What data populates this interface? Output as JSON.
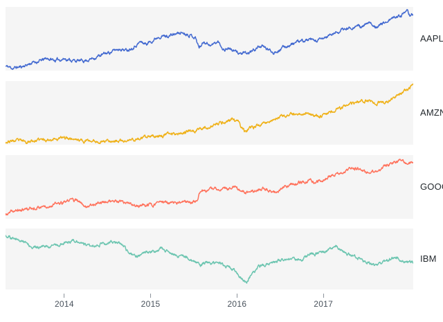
{
  "chart_data": {
    "type": "line",
    "title": "",
    "layout": "faceted small multiples, one panel per stock, shared x axis",
    "x_domain": [
      2013.32,
      2018.04
    ],
    "x_ticks": [
      {
        "year": 2014,
        "label": "2014"
      },
      {
        "year": 2015,
        "label": "2015"
      },
      {
        "year": 2016,
        "label": "2016"
      },
      {
        "year": 2017,
        "label": "2017"
      }
    ],
    "grid": false,
    "panel_background": "#f5f5f5",
    "samples": 1190,
    "stroke_width": 1.5,
    "noise": {
      "persistence": 0.8,
      "amplitude": 3.4
    },
    "series": [
      {
        "name": "AAPL",
        "color": "#4269d0",
        "seed": 11,
        "points": [
          [
            2013.32,
            7
          ],
          [
            2013.4,
            4
          ],
          [
            2013.5,
            6
          ],
          [
            2013.62,
            12
          ],
          [
            2013.74,
            16
          ],
          [
            2013.8,
            19
          ],
          [
            2013.9,
            16
          ],
          [
            2014.0,
            19
          ],
          [
            2014.1,
            16
          ],
          [
            2014.2,
            15
          ],
          [
            2014.3,
            18
          ],
          [
            2014.42,
            24
          ],
          [
            2014.55,
            30
          ],
          [
            2014.65,
            35
          ],
          [
            2014.72,
            32
          ],
          [
            2014.8,
            38
          ],
          [
            2014.88,
            45
          ],
          [
            2014.95,
            42
          ],
          [
            2015.05,
            50
          ],
          [
            2015.1,
            55
          ],
          [
            2015.18,
            54
          ],
          [
            2015.25,
            56
          ],
          [
            2015.36,
            60
          ],
          [
            2015.45,
            57
          ],
          [
            2015.52,
            52
          ],
          [
            2015.56,
            36
          ],
          [
            2015.62,
            46
          ],
          [
            2015.7,
            40
          ],
          [
            2015.78,
            45
          ],
          [
            2015.85,
            33
          ],
          [
            2015.9,
            36
          ],
          [
            2015.97,
            30
          ],
          [
            2016.05,
            27
          ],
          [
            2016.12,
            26
          ],
          [
            2016.2,
            33
          ],
          [
            2016.27,
            39
          ],
          [
            2016.33,
            35
          ],
          [
            2016.42,
            29
          ],
          [
            2016.5,
            34
          ],
          [
            2016.6,
            40
          ],
          [
            2016.68,
            44
          ],
          [
            2016.75,
            46
          ],
          [
            2016.82,
            48
          ],
          [
            2016.9,
            46
          ],
          [
            2016.97,
            48
          ],
          [
            2017.05,
            54
          ],
          [
            2017.12,
            58
          ],
          [
            2017.2,
            63
          ],
          [
            2017.3,
            67
          ],
          [
            2017.38,
            71
          ],
          [
            2017.45,
            68
          ],
          [
            2017.52,
            74
          ],
          [
            2017.6,
            70
          ],
          [
            2017.68,
            73
          ],
          [
            2017.75,
            79
          ],
          [
            2017.82,
            83
          ],
          [
            2017.9,
            88
          ],
          [
            2017.97,
            91
          ],
          [
            2018.0,
            87
          ],
          [
            2018.04,
            90
          ]
        ]
      },
      {
        "name": "AMZN",
        "color": "#efb118",
        "seed": 23,
        "points": [
          [
            2013.32,
            5
          ],
          [
            2013.45,
            6
          ],
          [
            2013.55,
            5
          ],
          [
            2013.7,
            7
          ],
          [
            2013.85,
            9
          ],
          [
            2013.95,
            10
          ],
          [
            2014.05,
            11
          ],
          [
            2014.15,
            8
          ],
          [
            2014.25,
            6
          ],
          [
            2014.4,
            5
          ],
          [
            2014.5,
            7
          ],
          [
            2014.6,
            6
          ],
          [
            2014.7,
            5
          ],
          [
            2014.8,
            8
          ],
          [
            2014.9,
            10
          ],
          [
            2015.0,
            12
          ],
          [
            2015.08,
            14
          ],
          [
            2015.18,
            16
          ],
          [
            2015.28,
            18
          ],
          [
            2015.4,
            20
          ],
          [
            2015.5,
            22
          ],
          [
            2015.58,
            26
          ],
          [
            2015.66,
            27
          ],
          [
            2015.75,
            31
          ],
          [
            2015.85,
            36
          ],
          [
            2015.95,
            40
          ],
          [
            2016.02,
            34
          ],
          [
            2016.1,
            19
          ],
          [
            2016.17,
            26
          ],
          [
            2016.25,
            31
          ],
          [
            2016.35,
            36
          ],
          [
            2016.45,
            41
          ],
          [
            2016.55,
            44
          ],
          [
            2016.65,
            47
          ],
          [
            2016.75,
            49
          ],
          [
            2016.82,
            51
          ],
          [
            2016.9,
            44
          ],
          [
            2016.97,
            46
          ],
          [
            2017.05,
            50
          ],
          [
            2017.15,
            55
          ],
          [
            2017.25,
            60
          ],
          [
            2017.35,
            64
          ],
          [
            2017.45,
            68
          ],
          [
            2017.52,
            70
          ],
          [
            2017.6,
            65
          ],
          [
            2017.7,
            67
          ],
          [
            2017.78,
            70
          ],
          [
            2017.85,
            76
          ],
          [
            2017.92,
            82
          ],
          [
            2018.0,
            88
          ],
          [
            2018.04,
            92
          ]
        ]
      },
      {
        "name": "GOOG",
        "color": "#ff725c",
        "seed": 37,
        "points": [
          [
            2013.32,
            6
          ],
          [
            2013.42,
            12
          ],
          [
            2013.6,
            16
          ],
          [
            2013.85,
            22
          ],
          [
            2014.0,
            25
          ],
          [
            2014.1,
            31
          ],
          [
            2014.25,
            20
          ],
          [
            2014.4,
            26
          ],
          [
            2014.55,
            28
          ],
          [
            2014.7,
            24
          ],
          [
            2014.85,
            20
          ],
          [
            2015.0,
            22
          ],
          [
            2015.12,
            26
          ],
          [
            2015.25,
            24
          ],
          [
            2015.4,
            26
          ],
          [
            2015.53,
            27
          ],
          [
            2015.56,
            40
          ],
          [
            2015.65,
            45
          ],
          [
            2015.8,
            47
          ],
          [
            2015.95,
            50
          ],
          [
            2016.05,
            44
          ],
          [
            2016.12,
            40
          ],
          [
            2016.3,
            48
          ],
          [
            2016.38,
            44
          ],
          [
            2016.46,
            41
          ],
          [
            2016.55,
            50
          ],
          [
            2016.62,
            54
          ],
          [
            2016.75,
            58
          ],
          [
            2016.86,
            60
          ],
          [
            2016.92,
            56
          ],
          [
            2017.02,
            64
          ],
          [
            2017.18,
            71
          ],
          [
            2017.3,
            77
          ],
          [
            2017.42,
            79
          ],
          [
            2017.5,
            71
          ],
          [
            2017.6,
            74
          ],
          [
            2017.7,
            82
          ],
          [
            2017.8,
            86
          ],
          [
            2017.88,
            92
          ],
          [
            2017.95,
            88
          ],
          [
            2018.04,
            90
          ]
        ]
      },
      {
        "name": "IBM",
        "color": "#6cc5b0",
        "seed": 51,
        "points": [
          [
            2013.32,
            90
          ],
          [
            2013.38,
            85
          ],
          [
            2013.45,
            82
          ],
          [
            2013.52,
            78
          ],
          [
            2013.6,
            74
          ],
          [
            2013.68,
            68
          ],
          [
            2013.76,
            72
          ],
          [
            2013.82,
            69
          ],
          [
            2013.9,
            73
          ],
          [
            2014.0,
            76
          ],
          [
            2014.08,
            79
          ],
          [
            2014.15,
            81
          ],
          [
            2014.22,
            76
          ],
          [
            2014.3,
            72
          ],
          [
            2014.4,
            75
          ],
          [
            2014.5,
            77
          ],
          [
            2014.6,
            79
          ],
          [
            2014.68,
            71
          ],
          [
            2014.75,
            58
          ],
          [
            2014.85,
            55
          ],
          [
            2014.95,
            60
          ],
          [
            2015.05,
            63
          ],
          [
            2015.12,
            66
          ],
          [
            2015.2,
            62
          ],
          [
            2015.3,
            57
          ],
          [
            2015.4,
            54
          ],
          [
            2015.5,
            48
          ],
          [
            2015.58,
            40
          ],
          [
            2015.65,
            45
          ],
          [
            2015.72,
            42
          ],
          [
            2015.8,
            44
          ],
          [
            2015.88,
            38
          ],
          [
            2015.95,
            35
          ],
          [
            2016.03,
            22
          ],
          [
            2016.1,
            10
          ],
          [
            2016.16,
            22
          ],
          [
            2016.24,
            35
          ],
          [
            2016.32,
            40
          ],
          [
            2016.4,
            44
          ],
          [
            2016.5,
            46
          ],
          [
            2016.6,
            51
          ],
          [
            2016.68,
            49
          ],
          [
            2016.76,
            52
          ],
          [
            2016.85,
            57
          ],
          [
            2016.93,
            59
          ],
          [
            2017.0,
            61
          ],
          [
            2017.08,
            67
          ],
          [
            2017.15,
            70
          ],
          [
            2017.22,
            64
          ],
          [
            2017.3,
            57
          ],
          [
            2017.4,
            51
          ],
          [
            2017.5,
            45
          ],
          [
            2017.6,
            40
          ],
          [
            2017.68,
            43
          ],
          [
            2017.75,
            47
          ],
          [
            2017.82,
            54
          ],
          [
            2017.88,
            50
          ],
          [
            2017.95,
            44
          ],
          [
            2018.0,
            47
          ],
          [
            2018.04,
            45
          ]
        ]
      }
    ]
  },
  "axis": {
    "tick_color": "#8a9099",
    "label_color": "#49525c"
  }
}
